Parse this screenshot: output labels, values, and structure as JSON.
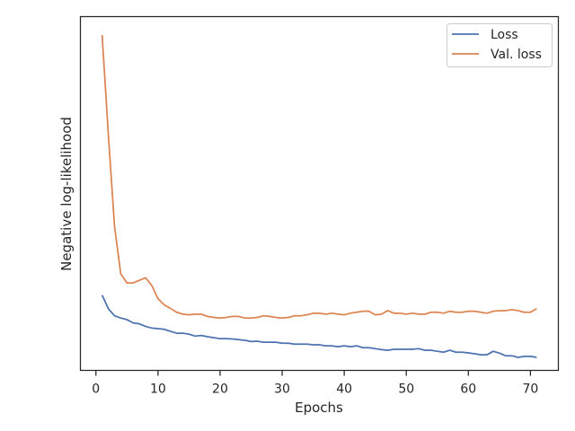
{
  "chart_data": {
    "type": "line",
    "title": "",
    "xlabel": "Epochs",
    "ylabel": "Negative log-likelihood",
    "xlim": [
      -2.5,
      74.5
    ],
    "ylim": [
      0,
      100
    ],
    "x_ticks": [
      0,
      10,
      20,
      30,
      40,
      50,
      60,
      70
    ],
    "x_tick_labels": [
      "0",
      "10",
      "20",
      "30",
      "40",
      "50",
      "60",
      "70"
    ],
    "y_tick_labels_shown": false,
    "grid": false,
    "legend_position": "top-right",
    "colors": {
      "loss": "#4c72b0",
      "val_loss": "#dd8452",
      "axes": "#262626"
    },
    "x": [
      1,
      2,
      3,
      4,
      5,
      6,
      7,
      8,
      9,
      10,
      11,
      12,
      13,
      14,
      15,
      16,
      17,
      18,
      19,
      20,
      21,
      22,
      23,
      24,
      25,
      26,
      27,
      28,
      29,
      30,
      31,
      32,
      33,
      34,
      35,
      36,
      37,
      38,
      39,
      40,
      41,
      42,
      43,
      44,
      45,
      46,
      47,
      48,
      49,
      50,
      51,
      52,
      53,
      54,
      55,
      56,
      57,
      58,
      59,
      60,
      61,
      62,
      63,
      64,
      65,
      66,
      67,
      68,
      69,
      70,
      71
    ],
    "series": [
      {
        "name": "Loss",
        "color": "#4c72b0",
        "values": [
          19.3,
          15.1,
          12.9,
          12.2,
          11.7,
          10.7,
          10.4,
          9.6,
          9.1,
          8.9,
          8.7,
          8.1,
          7.5,
          7.5,
          7.2,
          6.6,
          6.8,
          6.4,
          6.1,
          5.8,
          5.8,
          5.7,
          5.5,
          5.3,
          4.9,
          5.0,
          4.7,
          4.7,
          4.7,
          4.4,
          4.4,
          4.1,
          4.1,
          4.1,
          3.9,
          3.9,
          3.6,
          3.6,
          3.3,
          3.6,
          3.3,
          3.6,
          3.0,
          3.0,
          2.7,
          2.4,
          2.2,
          2.5,
          2.5,
          2.5,
          2.5,
          2.7,
          2.2,
          2.2,
          1.9,
          1.6,
          2.2,
          1.6,
          1.6,
          1.4,
          1.1,
          0.8,
          0.8,
          1.9,
          1.3,
          0.5,
          0.5,
          0,
          0.3,
          0.3,
          0
        ]
      },
      {
        "name": "Val. loss",
        "color": "#dd8452",
        "values": [
          100,
          69.1,
          40.6,
          25.9,
          23.1,
          23.1,
          23.9,
          24.7,
          22.3,
          18.2,
          16.3,
          15.2,
          14.0,
          13.4,
          13.2,
          13.4,
          13.4,
          12.7,
          12.4,
          12.2,
          12.4,
          12.7,
          12.7,
          12.2,
          12.2,
          12.4,
          12.9,
          12.7,
          12.4,
          12.2,
          12.4,
          12.9,
          12.9,
          13.2,
          13.7,
          13.7,
          13.4,
          13.7,
          13.4,
          13.2,
          13.7,
          14.0,
          14.3,
          14.3,
          13.2,
          13.4,
          14.5,
          13.7,
          13.7,
          13.4,
          13.7,
          13.4,
          13.4,
          14.0,
          14.0,
          13.7,
          14.3,
          14.0,
          14.0,
          14.3,
          14.3,
          14.0,
          13.7,
          14.3,
          14.5,
          14.5,
          14.8,
          14.5,
          14.0,
          14.0,
          15.1
        ]
      }
    ]
  }
}
